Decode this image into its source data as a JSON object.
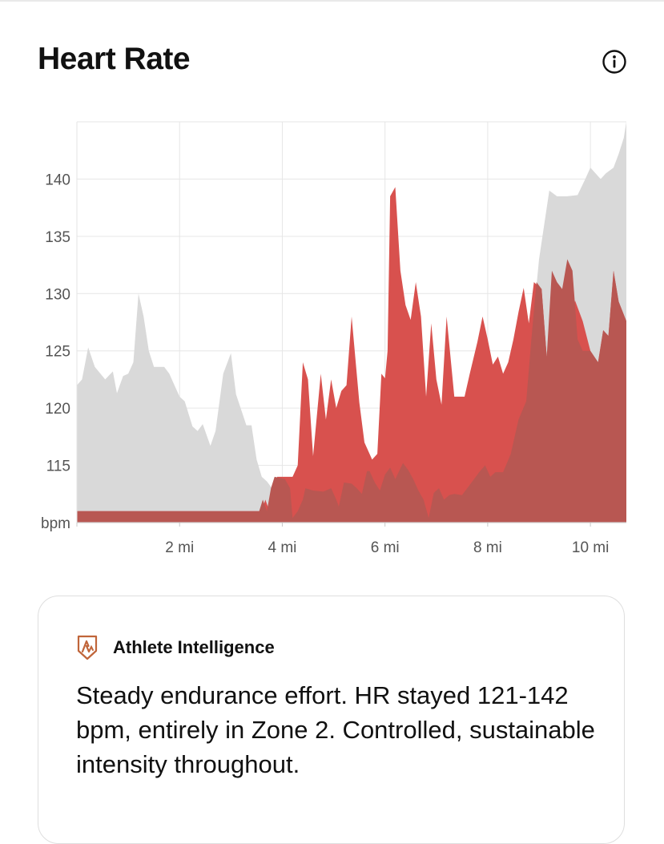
{
  "header": {
    "title": "Heart Rate",
    "info_icon": "info-icon"
  },
  "chart_data": {
    "type": "area",
    "x_unit": "mi",
    "ylabel": "bpm",
    "ylim": [
      110,
      145
    ],
    "xlim": [
      0,
      10.7
    ],
    "x_ticks": [
      {
        "value": 2,
        "label": "2 mi"
      },
      {
        "value": 4,
        "label": "4 mi"
      },
      {
        "value": 6,
        "label": "6 mi"
      },
      {
        "value": 8,
        "label": "8 mi"
      },
      {
        "value": 10,
        "label": "10 mi"
      }
    ],
    "y_ticks": [
      {
        "value": 110,
        "label": "bpm"
      },
      {
        "value": 115,
        "label": "115"
      },
      {
        "value": 120,
        "label": "120"
      },
      {
        "value": 125,
        "label": "125"
      },
      {
        "value": 130,
        "label": "130"
      },
      {
        "value": 135,
        "label": "135"
      },
      {
        "value": 140,
        "label": "140"
      }
    ],
    "grid": true,
    "series": [
      {
        "color": "#d9d9d9",
        "points": [
          [
            0,
            122
          ],
          [
            0.1,
            122.5
          ],
          [
            0.22,
            125.3
          ],
          [
            0.35,
            123.6
          ],
          [
            0.55,
            122.5
          ],
          [
            0.7,
            123.2
          ],
          [
            0.78,
            121.3
          ],
          [
            0.9,
            122.8
          ],
          [
            1.0,
            123
          ],
          [
            1.1,
            124
          ],
          [
            1.2,
            130
          ],
          [
            1.3,
            128
          ],
          [
            1.4,
            125
          ],
          [
            1.5,
            123.6
          ],
          [
            1.7,
            123.6
          ],
          [
            1.8,
            123
          ],
          [
            1.9,
            122
          ],
          [
            2.0,
            121
          ],
          [
            2.1,
            120.6
          ],
          [
            2.25,
            118.4
          ],
          [
            2.35,
            118
          ],
          [
            2.45,
            118.6
          ],
          [
            2.6,
            116.7
          ],
          [
            2.7,
            118
          ],
          [
            2.85,
            123
          ],
          [
            3.0,
            124.8
          ],
          [
            3.1,
            121.2
          ],
          [
            3.3,
            118.5
          ],
          [
            3.4,
            118.5
          ],
          [
            3.5,
            115.5
          ],
          [
            3.6,
            114
          ],
          [
            3.7,
            113.6
          ],
          [
            3.8,
            113
          ],
          [
            3.9,
            112.6
          ],
          [
            4.0,
            113
          ],
          [
            4.2,
            113.2
          ],
          [
            4.3,
            111
          ],
          [
            4.4,
            110
          ],
          [
            4.55,
            112
          ],
          [
            4.7,
            113
          ],
          [
            4.9,
            112.6
          ],
          [
            5.0,
            111.6
          ],
          [
            5.2,
            113.2
          ],
          [
            5.4,
            113.4
          ],
          [
            5.55,
            113
          ],
          [
            5.7,
            112.3
          ],
          [
            5.85,
            113.2
          ],
          [
            5.95,
            114
          ],
          [
            6.1,
            113
          ],
          [
            6.25,
            113.7
          ],
          [
            6.35,
            115
          ],
          [
            6.5,
            112.8
          ],
          [
            6.7,
            111.5
          ],
          [
            6.85,
            110.4
          ],
          [
            7.0,
            112.6
          ],
          [
            7.15,
            113
          ],
          [
            7.3,
            112
          ],
          [
            7.5,
            112.5
          ],
          [
            7.7,
            113.6
          ],
          [
            7.85,
            115
          ],
          [
            8.0,
            113.6
          ],
          [
            8.1,
            114.2
          ],
          [
            8.25,
            114.4
          ],
          [
            8.4,
            116
          ],
          [
            8.55,
            119
          ],
          [
            8.7,
            120.6
          ],
          [
            8.85,
            126
          ],
          [
            9.0,
            133
          ],
          [
            9.2,
            139
          ],
          [
            9.35,
            138.5
          ],
          [
            9.55,
            138.5
          ],
          [
            9.75,
            138.6
          ],
          [
            9.9,
            140
          ],
          [
            10.0,
            141
          ],
          [
            10.1,
            140.5
          ],
          [
            10.2,
            140
          ],
          [
            10.3,
            140.5
          ],
          [
            10.45,
            141
          ],
          [
            10.55,
            142.2
          ],
          [
            10.65,
            143.6
          ],
          [
            10.7,
            145
          ]
        ]
      },
      {
        "color": "#d8514e",
        "points": [
          [
            0,
            111
          ],
          [
            3.6,
            111
          ],
          [
            3.67,
            112
          ],
          [
            3.75,
            111
          ],
          [
            3.9,
            114
          ],
          [
            4.1,
            114
          ],
          [
            4.2,
            114
          ],
          [
            4.3,
            115
          ],
          [
            4.4,
            124
          ],
          [
            4.5,
            122.5
          ],
          [
            4.6,
            115.8
          ],
          [
            4.75,
            123
          ],
          [
            4.85,
            119
          ],
          [
            4.95,
            122.5
          ],
          [
            5.05,
            120
          ],
          [
            5.15,
            121.5
          ],
          [
            5.25,
            122
          ],
          [
            5.35,
            128
          ],
          [
            5.5,
            120.5
          ],
          [
            5.6,
            117
          ],
          [
            5.75,
            115.5
          ],
          [
            5.85,
            116
          ],
          [
            5.93,
            123
          ],
          [
            6.0,
            122.6
          ],
          [
            6.05,
            125
          ],
          [
            6.1,
            138.5
          ],
          [
            6.2,
            139.3
          ],
          [
            6.3,
            132
          ],
          [
            6.4,
            129
          ],
          [
            6.5,
            127.7
          ],
          [
            6.6,
            131
          ],
          [
            6.7,
            128
          ],
          [
            6.8,
            121
          ],
          [
            6.9,
            127.4
          ],
          [
            7.0,
            122.5
          ],
          [
            7.1,
            120.3
          ],
          [
            7.2,
            128
          ],
          [
            7.35,
            121
          ],
          [
            7.45,
            121
          ],
          [
            7.55,
            121
          ],
          [
            7.65,
            123
          ],
          [
            7.8,
            125.8
          ],
          [
            7.9,
            128
          ],
          [
            8.0,
            126
          ],
          [
            8.1,
            123.8
          ],
          [
            8.2,
            124.5
          ],
          [
            8.3,
            123
          ],
          [
            8.4,
            124
          ],
          [
            8.5,
            126
          ],
          [
            8.6,
            128.4
          ],
          [
            8.7,
            130.5
          ],
          [
            8.8,
            127.4
          ],
          [
            8.9,
            131
          ],
          [
            9.05,
            130.4
          ],
          [
            9.15,
            124.5
          ],
          [
            9.35,
            125
          ],
          [
            9.55,
            125
          ],
          [
            9.7,
            129.4
          ],
          [
            9.85,
            127.6
          ],
          [
            10.0,
            125
          ],
          [
            10.15,
            124
          ],
          [
            10.25,
            126.8
          ],
          [
            10.35,
            126.3
          ],
          [
            10.45,
            132
          ],
          [
            10.55,
            129.3
          ],
          [
            10.7,
            127.6
          ]
        ]
      },
      {
        "color": "#b85752",
        "points": [
          [
            0,
            111
          ],
          [
            3.55,
            111
          ],
          [
            3.62,
            112
          ],
          [
            3.7,
            111
          ],
          [
            3.78,
            113
          ],
          [
            3.85,
            114
          ],
          [
            4.05,
            113.8
          ],
          [
            4.15,
            113
          ],
          [
            4.2,
            110.4
          ],
          [
            4.3,
            111
          ],
          [
            4.4,
            112
          ],
          [
            4.45,
            113
          ],
          [
            4.6,
            112.8
          ],
          [
            4.8,
            112.7
          ],
          [
            4.95,
            113
          ],
          [
            5.05,
            112
          ],
          [
            5.1,
            111.4
          ],
          [
            5.2,
            113.5
          ],
          [
            5.35,
            113.4
          ],
          [
            5.45,
            113
          ],
          [
            5.55,
            112.5
          ],
          [
            5.65,
            114.5
          ],
          [
            5.7,
            114.5
          ],
          [
            5.8,
            113.5
          ],
          [
            5.9,
            112.8
          ],
          [
            6.0,
            114.2
          ],
          [
            6.1,
            114.8
          ],
          [
            6.2,
            113.8
          ],
          [
            6.35,
            115.2
          ],
          [
            6.45,
            114.6
          ],
          [
            6.55,
            113.8
          ],
          [
            6.65,
            112.8
          ],
          [
            6.75,
            112
          ],
          [
            6.85,
            110.4
          ],
          [
            6.95,
            112.6
          ],
          [
            7.05,
            113
          ],
          [
            7.15,
            112
          ],
          [
            7.25,
            112.4
          ],
          [
            7.35,
            112.5
          ],
          [
            7.5,
            112.4
          ],
          [
            7.6,
            113
          ],
          [
            7.7,
            113.6
          ],
          [
            7.85,
            114.5
          ],
          [
            7.95,
            115
          ],
          [
            8.05,
            114
          ],
          [
            8.15,
            114.4
          ],
          [
            8.3,
            114.4
          ],
          [
            8.45,
            116
          ],
          [
            8.6,
            119
          ],
          [
            8.75,
            120.6
          ],
          [
            8.85,
            126
          ],
          [
            8.95,
            131
          ],
          [
            9.05,
            130.4
          ],
          [
            9.15,
            124.5
          ],
          [
            9.25,
            132
          ],
          [
            9.35,
            131
          ],
          [
            9.45,
            130.4
          ],
          [
            9.55,
            133
          ],
          [
            9.65,
            132
          ],
          [
            9.75,
            126
          ],
          [
            9.85,
            125
          ],
          [
            10.0,
            125
          ],
          [
            10.15,
            124
          ],
          [
            10.25,
            126.8
          ],
          [
            10.35,
            126.3
          ],
          [
            10.45,
            132
          ],
          [
            10.55,
            129.3
          ],
          [
            10.7,
            127.6
          ]
        ]
      }
    ]
  },
  "insight_card": {
    "brand_icon": "athlete-intelligence-icon",
    "title": "Athlete Intelligence",
    "body": "Steady endurance effort. HR stayed 121-142 bpm, entirely in Zone 2. Controlled, sustainable intensity throughout."
  }
}
